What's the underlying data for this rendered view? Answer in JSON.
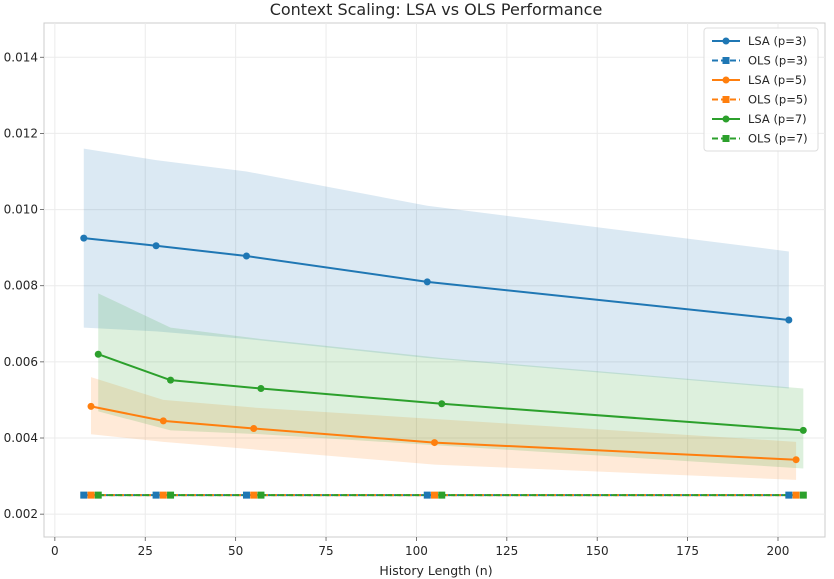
{
  "chart_data": {
    "type": "line",
    "title": "Context Scaling: LSA vs OLS Performance",
    "xlabel": "History Length (n)",
    "ylabel": "",
    "xlim": [
      -3,
      213
    ],
    "ylim": [
      0.0014,
      0.0149
    ],
    "xticks": [
      0,
      25,
      50,
      75,
      100,
      125,
      150,
      175,
      200
    ],
    "yticks": [
      0.002,
      0.004,
      0.006,
      0.008,
      0.01,
      0.012,
      0.014
    ],
    "xtick_labels": [
      "0",
      "25",
      "50",
      "75",
      "100",
      "125",
      "150",
      "175",
      "200"
    ],
    "ytick_labels": [
      "0.002",
      "0.004",
      "0.006",
      "0.008",
      "0.010",
      "0.012",
      "0.014"
    ],
    "grid": true,
    "legend_position": "top-right",
    "series": [
      {
        "name": "LSA (p=3)",
        "color": "#1f77b4",
        "marker": "circle",
        "linestyle": "solid",
        "x": [
          8,
          28,
          53,
          103,
          203
        ],
        "y": [
          0.00925,
          0.00905,
          0.00878,
          0.0081,
          0.0071
        ],
        "band_low": [
          0.0069,
          0.0068,
          0.0066,
          0.0061,
          0.0053
        ],
        "band_high": [
          0.0116,
          0.0113,
          0.011,
          0.0101,
          0.0089
        ]
      },
      {
        "name": "OLS (p=3)",
        "color": "#1f77b4",
        "marker": "square",
        "linestyle": "dashed",
        "x": [
          8,
          28,
          53,
          103,
          203
        ],
        "y": [
          0.0025,
          0.0025,
          0.0025,
          0.0025,
          0.0025
        ]
      },
      {
        "name": "LSA (p=5)",
        "color": "#ff7f0e",
        "marker": "circle",
        "linestyle": "solid",
        "x": [
          10,
          30,
          55,
          105,
          205
        ],
        "y": [
          0.00483,
          0.00445,
          0.00425,
          0.00388,
          0.00343
        ],
        "band_low": [
          0.0041,
          0.0039,
          0.0037,
          0.0033,
          0.0029
        ],
        "band_high": [
          0.0056,
          0.005,
          0.0048,
          0.0045,
          0.0039
        ]
      },
      {
        "name": "OLS (p=5)",
        "color": "#ff7f0e",
        "marker": "square",
        "linestyle": "dashed",
        "x": [
          10,
          30,
          55,
          105,
          205
        ],
        "y": [
          0.0025,
          0.0025,
          0.0025,
          0.0025,
          0.0025
        ]
      },
      {
        "name": "LSA (p=7)",
        "color": "#2ca02c",
        "marker": "circle",
        "linestyle": "solid",
        "x": [
          12,
          32,
          57,
          107,
          207
        ],
        "y": [
          0.0062,
          0.00552,
          0.0053,
          0.0049,
          0.0042
        ],
        "band_low": [
          0.0047,
          0.0042,
          0.0041,
          0.0038,
          0.0032
        ],
        "band_high": [
          0.0078,
          0.0069,
          0.0066,
          0.0061,
          0.0053
        ]
      },
      {
        "name": "OLS (p=7)",
        "color": "#2ca02c",
        "marker": "square",
        "linestyle": "dashed",
        "x": [
          12,
          32,
          57,
          107,
          207
        ],
        "y": [
          0.0025,
          0.0025,
          0.0025,
          0.0025,
          0.0025
        ]
      }
    ]
  }
}
